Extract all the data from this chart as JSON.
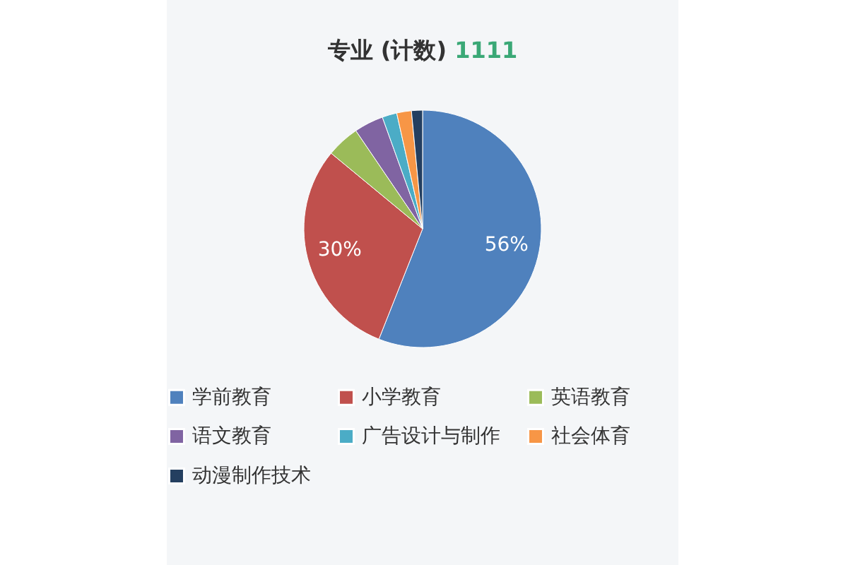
{
  "chart_data": {
    "type": "pie",
    "title": "专业 (计数)",
    "annotations": [
      "1111"
    ],
    "categories": [
      "学前教育",
      "小学教育",
      "英语教育",
      "语文教育",
      "广告设计与制作",
      "社会体育",
      "动漫制作技术"
    ],
    "values": [
      56,
      30,
      4.5,
      4,
      2,
      2,
      1.5
    ],
    "colors": [
      "#4f81bd",
      "#c0504d",
      "#9bbb59",
      "#8064a2",
      "#4bacc6",
      "#f79646",
      "#243f60"
    ],
    "value_labels": [
      "56%",
      "30%",
      null,
      null,
      null,
      null,
      null
    ],
    "legend": "bottom"
  }
}
